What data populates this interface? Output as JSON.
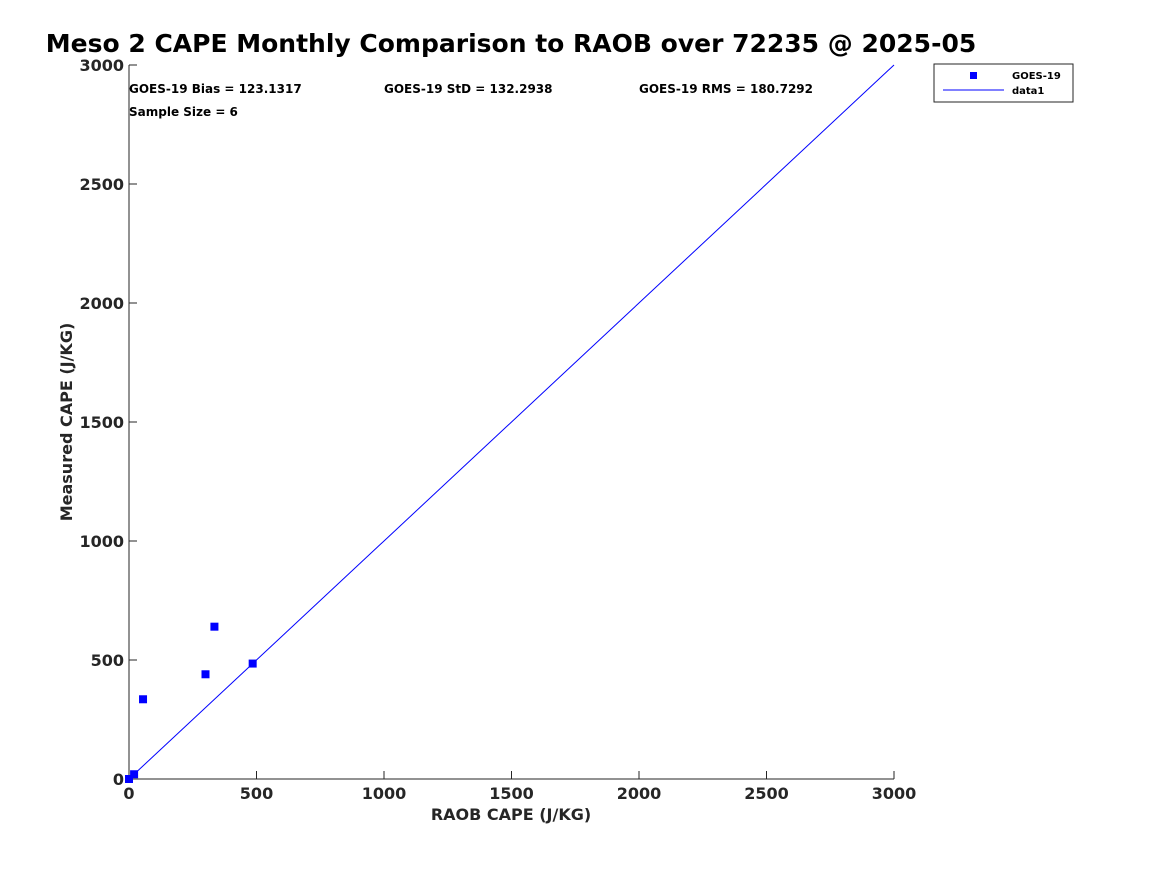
{
  "chart_data": {
    "type": "scatter",
    "title": "Meso 2 CAPE Monthly Comparison to RAOB over 72235 @ 2025-05",
    "xlabel": "RAOB CAPE (J/KG)",
    "ylabel": "Measured CAPE (J/KG)",
    "xlim": [
      0,
      3000
    ],
    "ylim": [
      0,
      3000
    ],
    "xticks": [
      0,
      500,
      1000,
      1500,
      2000,
      2500,
      3000
    ],
    "yticks": [
      0,
      500,
      1000,
      1500,
      2000,
      2500,
      3000
    ],
    "xtick_labels": [
      "0",
      "500",
      "1000",
      "1500",
      "2000",
      "2500",
      "3000"
    ],
    "ytick_labels": [
      "0",
      "500",
      "1000",
      "1500",
      "2000",
      "2500",
      "3000"
    ],
    "grid": false,
    "legend_position": "top-right-outside",
    "series": [
      {
        "name": "GOES-19",
        "kind": "scatter",
        "marker": "square",
        "color": "#0000ff",
        "x": [
          0,
          20,
          55,
          300,
          335,
          485
        ],
        "y": [
          0,
          20,
          335,
          440,
          640,
          485
        ]
      },
      {
        "name": "data1",
        "kind": "line",
        "color": "#0000ff",
        "x": [
          0,
          3000
        ],
        "y": [
          0,
          3000
        ]
      }
    ],
    "annotations": {
      "bias": "GOES-19 Bias = 123.1317",
      "std": "GOES-19 StD = 132.2938",
      "rms": "GOES-19 RMS = 180.7292",
      "sample_size": "Sample Size = 6"
    }
  }
}
